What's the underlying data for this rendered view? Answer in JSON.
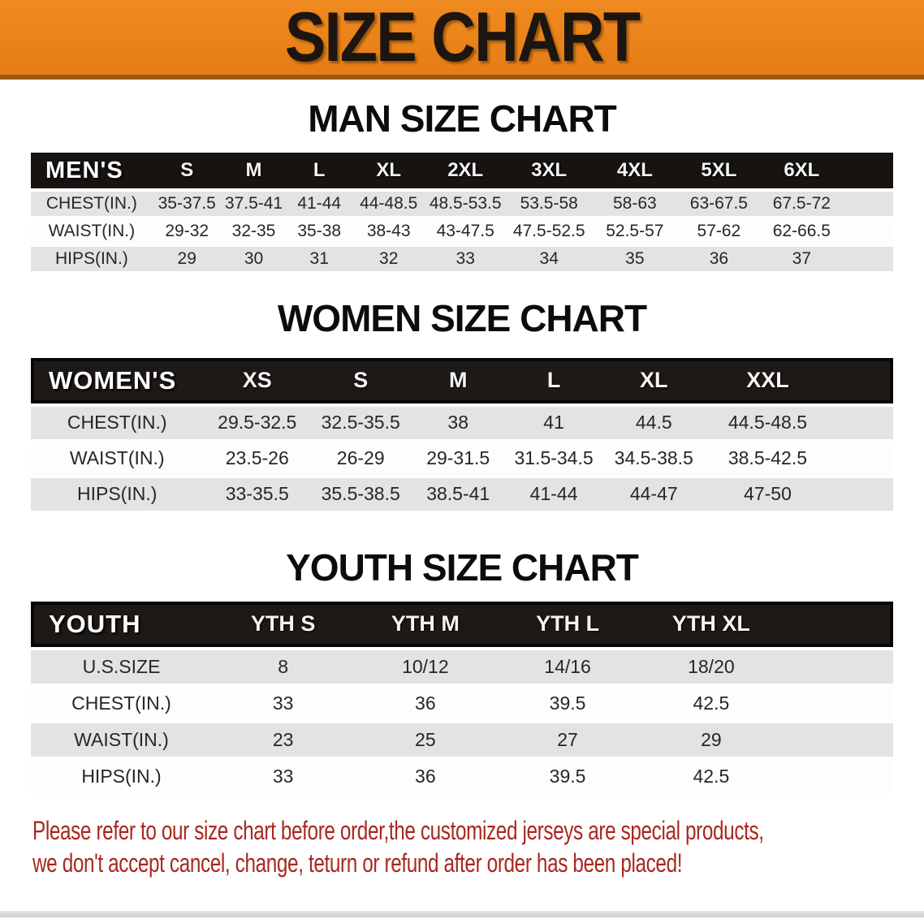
{
  "banner": {
    "title": "SIZE CHART"
  },
  "colors": {
    "banner_orange": "#e67d15",
    "banner_orange_light": "#ef8a20",
    "bar_black": "#171310",
    "row_gray": "#e3e3e4",
    "note_red": "#a8281f"
  },
  "sections": [
    {
      "id": "men",
      "heading": "MAN SIZE CHART",
      "corner": "MEN'S",
      "sizes": [
        "S",
        "M",
        "L",
        "XL",
        "2XL",
        "3XL",
        "4XL",
        "5XL",
        "6XL"
      ],
      "rows": [
        {
          "label": "CHEST(IN.)",
          "values": [
            "35-37.5",
            "37.5-41",
            "41-44",
            "44-48.5",
            "48.5-53.5",
            "53.5-58",
            "58-63",
            "63-67.5",
            "67.5-72"
          ]
        },
        {
          "label": "WAIST(IN.)",
          "values": [
            "29-32",
            "32-35",
            "35-38",
            "38-43",
            "43-47.5",
            "47.5-52.5",
            "52.5-57",
            "57-62",
            "62-66.5"
          ]
        },
        {
          "label": "HIPS(IN.)",
          "values": [
            "29",
            "30",
            "31",
            "32",
            "33",
            "34",
            "35",
            "36",
            "37"
          ]
        }
      ]
    },
    {
      "id": "women",
      "heading": "WOMEN SIZE CHART",
      "corner": "WOMEN'S",
      "sizes": [
        "XS",
        "S",
        "M",
        "L",
        "XL",
        "XXL"
      ],
      "rows": [
        {
          "label": "CHEST(IN.)",
          "values": [
            "29.5-32.5",
            "32.5-35.5",
            "38",
            "41",
            "44.5",
            "44.5-48.5"
          ]
        },
        {
          "label": "WAIST(IN.)",
          "values": [
            "23.5-26",
            "26-29",
            "29-31.5",
            "31.5-34.5",
            "34.5-38.5",
            "38.5-42.5"
          ]
        },
        {
          "label": "HIPS(IN.)",
          "values": [
            "33-35.5",
            "35.5-38.5",
            "38.5-41",
            "41-44",
            "44-47",
            "47-50"
          ]
        }
      ]
    },
    {
      "id": "youth",
      "heading": "YOUTH SIZE CHART",
      "corner": "YOUTH",
      "sizes": [
        "YTH S",
        "YTH M",
        "YTH L",
        "YTH XL"
      ],
      "rows": [
        {
          "label": "U.S.SIZE",
          "values": [
            "8",
            "10/12",
            "14/16",
            "18/20"
          ]
        },
        {
          "label": "CHEST(IN.)",
          "values": [
            "33",
            "36",
            "39.5",
            "42.5"
          ]
        },
        {
          "label": "WAIST(IN.)",
          "values": [
            "23",
            "25",
            "27",
            "29"
          ]
        },
        {
          "label": "HIPS(IN.)",
          "values": [
            "33",
            "36",
            "39.5",
            "42.5"
          ]
        }
      ]
    }
  ],
  "notes": {
    "line1": "Please refer to our size chart before order,the customized jerseys are special products,",
    "line2": "we don't accept cancel, change, teturn or refund after order has been placed!"
  }
}
